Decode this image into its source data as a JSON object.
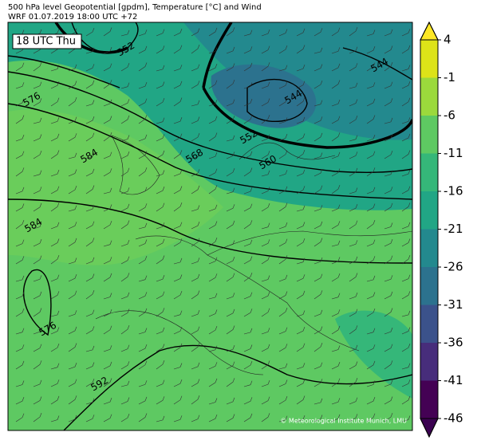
{
  "header": {
    "title": "500 hPa level Geopotential [gpdm], Temperature [°C] and Wind",
    "subtitle": "WRF 01.07.2019 18:00 UTC +72"
  },
  "map": {
    "time_label": "18 UTC Thu",
    "contour_labels": [
      "552",
      "576",
      "584",
      "568",
      "560",
      "552",
      "544",
      "544",
      "584",
      "576",
      "592"
    ],
    "credit": "© Meteorological Institute Munich, LMU"
  },
  "colorbar": {
    "levels": [
      4,
      -1,
      -6,
      -11,
      -16,
      -21,
      -26,
      -31,
      -36,
      -41,
      -46
    ],
    "colors": [
      "#dde318",
      "#9bd93c",
      "#5ec962",
      "#35b779",
      "#21a685",
      "#23898e",
      "#2c728e",
      "#3b528b",
      "#472d7b",
      "#440154"
    ],
    "extend_colors": [
      "#fde725",
      "#3b0251"
    ]
  }
}
